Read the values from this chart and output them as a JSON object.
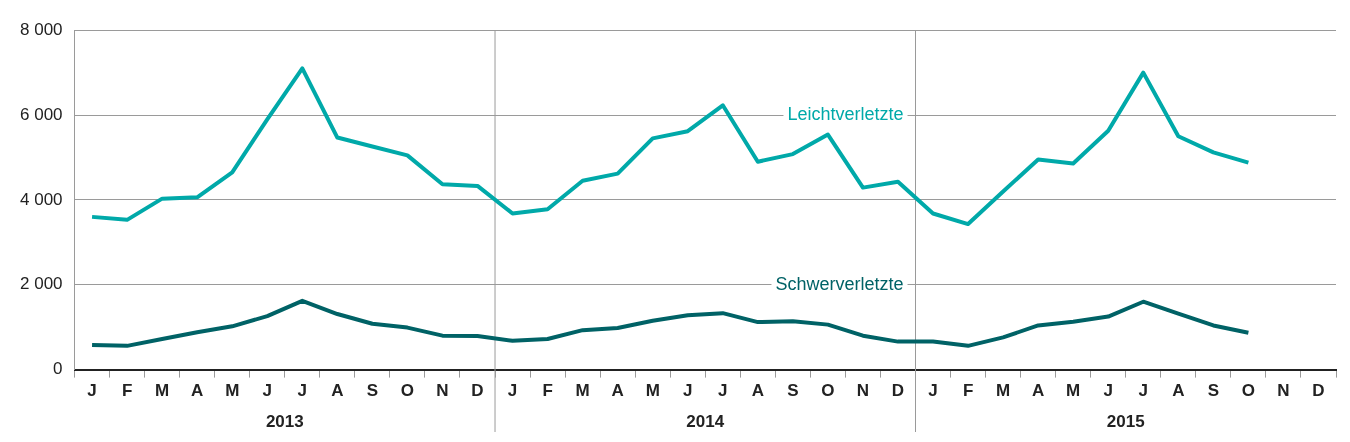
{
  "chart_data": {
    "type": "line",
    "categories": [
      "J",
      "F",
      "M",
      "A",
      "M",
      "J",
      "J",
      "A",
      "S",
      "O",
      "N",
      "D",
      "J",
      "F",
      "M",
      "A",
      "M",
      "J",
      "J",
      "A",
      "S",
      "O",
      "N",
      "D",
      "J",
      "F",
      "M",
      "A",
      "M",
      "J",
      "J",
      "A",
      "S",
      "O",
      "N",
      "D"
    ],
    "series": [
      {
        "name": "Leichtverletzte",
        "color": "#00a9a9",
        "values": [
          3600,
          3530,
          4030,
          4060,
          4650,
          5900,
          7100,
          5470,
          5260,
          5050,
          4370,
          4330,
          3680,
          3780,
          4450,
          4620,
          5450,
          5620,
          6230,
          4900,
          5080,
          5540,
          4290,
          4430,
          3680,
          3430,
          4200,
          4950,
          4860,
          5630,
          7000,
          5500,
          5120,
          4880,
          null,
          null
        ]
      },
      {
        "name": "Schwerverletzte",
        "color": "#006266",
        "values": [
          580,
          560,
          720,
          880,
          1020,
          1260,
          1620,
          1310,
          1080,
          990,
          800,
          790,
          680,
          720,
          930,
          980,
          1150,
          1280,
          1330,
          1120,
          1140,
          1060,
          800,
          660,
          660,
          560,
          760,
          1040,
          1130,
          1250,
          1600,
          1320,
          1040,
          870,
          null,
          null
        ]
      }
    ],
    "ylim": [
      0,
      8000
    ],
    "yticks": [
      0,
      {
        "value": 2000,
        "label": "2 000"
      },
      {
        "value": 4000,
        "label": "4 000"
      },
      {
        "value": 6000,
        "label": "6 000"
      },
      {
        "value": 8000,
        "label": "8 000"
      }
    ],
    "grid": "y",
    "legend": false,
    "marker": "none",
    "line_style": "solid",
    "annotations": [
      "2013",
      "2014",
      "2015"
    ]
  }
}
